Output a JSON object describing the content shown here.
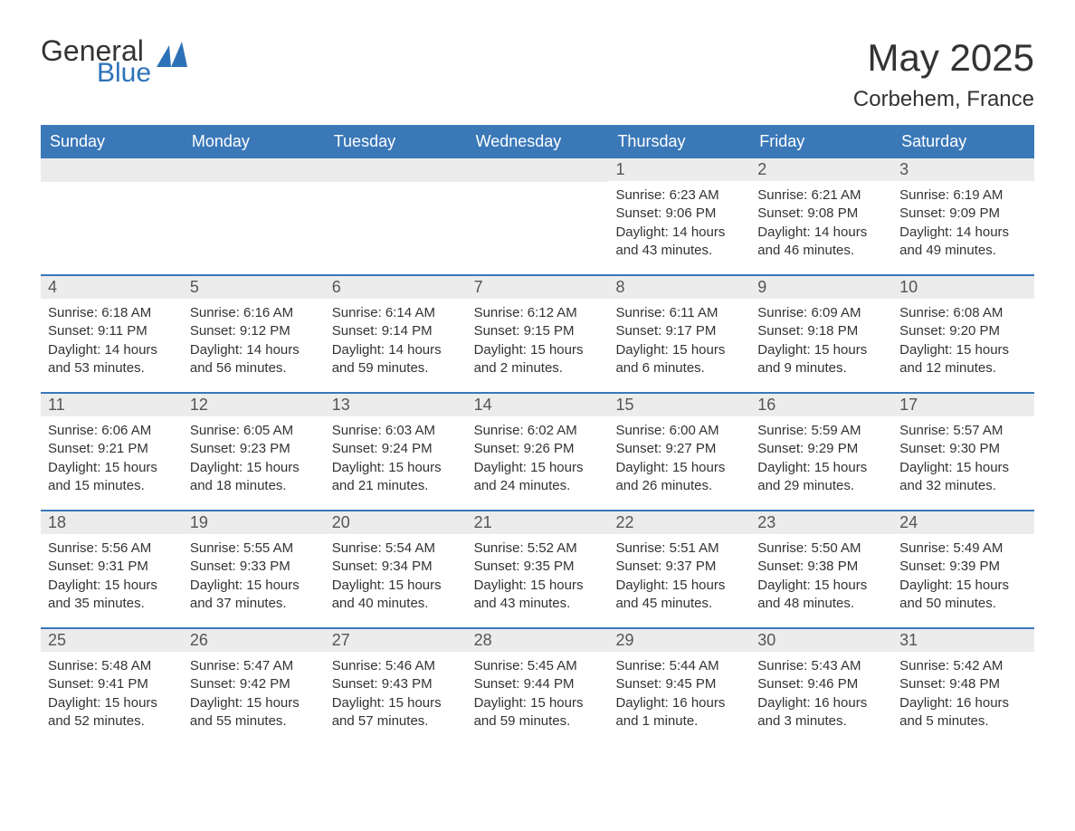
{
  "logo": {
    "text1": "General",
    "text2": "Blue",
    "shape_color": "#2d72b8"
  },
  "title": "May 2025",
  "subtitle": "Corbehem, France",
  "colors": {
    "header_bg": "#3a78b8",
    "header_text": "#ffffff",
    "daynum_bg": "#ececec",
    "daynum_text": "#555555",
    "body_text": "#333333",
    "border": "#3a78b8",
    "background": "#ffffff"
  },
  "day_headers": [
    "Sunday",
    "Monday",
    "Tuesday",
    "Wednesday",
    "Thursday",
    "Friday",
    "Saturday"
  ],
  "weeks": [
    [
      {
        "day": "",
        "sunrise": "",
        "sunset": "",
        "daylight": ""
      },
      {
        "day": "",
        "sunrise": "",
        "sunset": "",
        "daylight": ""
      },
      {
        "day": "",
        "sunrise": "",
        "sunset": "",
        "daylight": ""
      },
      {
        "day": "",
        "sunrise": "",
        "sunset": "",
        "daylight": ""
      },
      {
        "day": "1",
        "sunrise": "Sunrise: 6:23 AM",
        "sunset": "Sunset: 9:06 PM",
        "daylight": "Daylight: 14 hours and 43 minutes."
      },
      {
        "day": "2",
        "sunrise": "Sunrise: 6:21 AM",
        "sunset": "Sunset: 9:08 PM",
        "daylight": "Daylight: 14 hours and 46 minutes."
      },
      {
        "day": "3",
        "sunrise": "Sunrise: 6:19 AM",
        "sunset": "Sunset: 9:09 PM",
        "daylight": "Daylight: 14 hours and 49 minutes."
      }
    ],
    [
      {
        "day": "4",
        "sunrise": "Sunrise: 6:18 AM",
        "sunset": "Sunset: 9:11 PM",
        "daylight": "Daylight: 14 hours and 53 minutes."
      },
      {
        "day": "5",
        "sunrise": "Sunrise: 6:16 AM",
        "sunset": "Sunset: 9:12 PM",
        "daylight": "Daylight: 14 hours and 56 minutes."
      },
      {
        "day": "6",
        "sunrise": "Sunrise: 6:14 AM",
        "sunset": "Sunset: 9:14 PM",
        "daylight": "Daylight: 14 hours and 59 minutes."
      },
      {
        "day": "7",
        "sunrise": "Sunrise: 6:12 AM",
        "sunset": "Sunset: 9:15 PM",
        "daylight": "Daylight: 15 hours and 2 minutes."
      },
      {
        "day": "8",
        "sunrise": "Sunrise: 6:11 AM",
        "sunset": "Sunset: 9:17 PM",
        "daylight": "Daylight: 15 hours and 6 minutes."
      },
      {
        "day": "9",
        "sunrise": "Sunrise: 6:09 AM",
        "sunset": "Sunset: 9:18 PM",
        "daylight": "Daylight: 15 hours and 9 minutes."
      },
      {
        "day": "10",
        "sunrise": "Sunrise: 6:08 AM",
        "sunset": "Sunset: 9:20 PM",
        "daylight": "Daylight: 15 hours and 12 minutes."
      }
    ],
    [
      {
        "day": "11",
        "sunrise": "Sunrise: 6:06 AM",
        "sunset": "Sunset: 9:21 PM",
        "daylight": "Daylight: 15 hours and 15 minutes."
      },
      {
        "day": "12",
        "sunrise": "Sunrise: 6:05 AM",
        "sunset": "Sunset: 9:23 PM",
        "daylight": "Daylight: 15 hours and 18 minutes."
      },
      {
        "day": "13",
        "sunrise": "Sunrise: 6:03 AM",
        "sunset": "Sunset: 9:24 PM",
        "daylight": "Daylight: 15 hours and 21 minutes."
      },
      {
        "day": "14",
        "sunrise": "Sunrise: 6:02 AM",
        "sunset": "Sunset: 9:26 PM",
        "daylight": "Daylight: 15 hours and 24 minutes."
      },
      {
        "day": "15",
        "sunrise": "Sunrise: 6:00 AM",
        "sunset": "Sunset: 9:27 PM",
        "daylight": "Daylight: 15 hours and 26 minutes."
      },
      {
        "day": "16",
        "sunrise": "Sunrise: 5:59 AM",
        "sunset": "Sunset: 9:29 PM",
        "daylight": "Daylight: 15 hours and 29 minutes."
      },
      {
        "day": "17",
        "sunrise": "Sunrise: 5:57 AM",
        "sunset": "Sunset: 9:30 PM",
        "daylight": "Daylight: 15 hours and 32 minutes."
      }
    ],
    [
      {
        "day": "18",
        "sunrise": "Sunrise: 5:56 AM",
        "sunset": "Sunset: 9:31 PM",
        "daylight": "Daylight: 15 hours and 35 minutes."
      },
      {
        "day": "19",
        "sunrise": "Sunrise: 5:55 AM",
        "sunset": "Sunset: 9:33 PM",
        "daylight": "Daylight: 15 hours and 37 minutes."
      },
      {
        "day": "20",
        "sunrise": "Sunrise: 5:54 AM",
        "sunset": "Sunset: 9:34 PM",
        "daylight": "Daylight: 15 hours and 40 minutes."
      },
      {
        "day": "21",
        "sunrise": "Sunrise: 5:52 AM",
        "sunset": "Sunset: 9:35 PM",
        "daylight": "Daylight: 15 hours and 43 minutes."
      },
      {
        "day": "22",
        "sunrise": "Sunrise: 5:51 AM",
        "sunset": "Sunset: 9:37 PM",
        "daylight": "Daylight: 15 hours and 45 minutes."
      },
      {
        "day": "23",
        "sunrise": "Sunrise: 5:50 AM",
        "sunset": "Sunset: 9:38 PM",
        "daylight": "Daylight: 15 hours and 48 minutes."
      },
      {
        "day": "24",
        "sunrise": "Sunrise: 5:49 AM",
        "sunset": "Sunset: 9:39 PM",
        "daylight": "Daylight: 15 hours and 50 minutes."
      }
    ],
    [
      {
        "day": "25",
        "sunrise": "Sunrise: 5:48 AM",
        "sunset": "Sunset: 9:41 PM",
        "daylight": "Daylight: 15 hours and 52 minutes."
      },
      {
        "day": "26",
        "sunrise": "Sunrise: 5:47 AM",
        "sunset": "Sunset: 9:42 PM",
        "daylight": "Daylight: 15 hours and 55 minutes."
      },
      {
        "day": "27",
        "sunrise": "Sunrise: 5:46 AM",
        "sunset": "Sunset: 9:43 PM",
        "daylight": "Daylight: 15 hours and 57 minutes."
      },
      {
        "day": "28",
        "sunrise": "Sunrise: 5:45 AM",
        "sunset": "Sunset: 9:44 PM",
        "daylight": "Daylight: 15 hours and 59 minutes."
      },
      {
        "day": "29",
        "sunrise": "Sunrise: 5:44 AM",
        "sunset": "Sunset: 9:45 PM",
        "daylight": "Daylight: 16 hours and 1 minute."
      },
      {
        "day": "30",
        "sunrise": "Sunrise: 5:43 AM",
        "sunset": "Sunset: 9:46 PM",
        "daylight": "Daylight: 16 hours and 3 minutes."
      },
      {
        "day": "31",
        "sunrise": "Sunrise: 5:42 AM",
        "sunset": "Sunset: 9:48 PM",
        "daylight": "Daylight: 16 hours and 5 minutes."
      }
    ]
  ]
}
